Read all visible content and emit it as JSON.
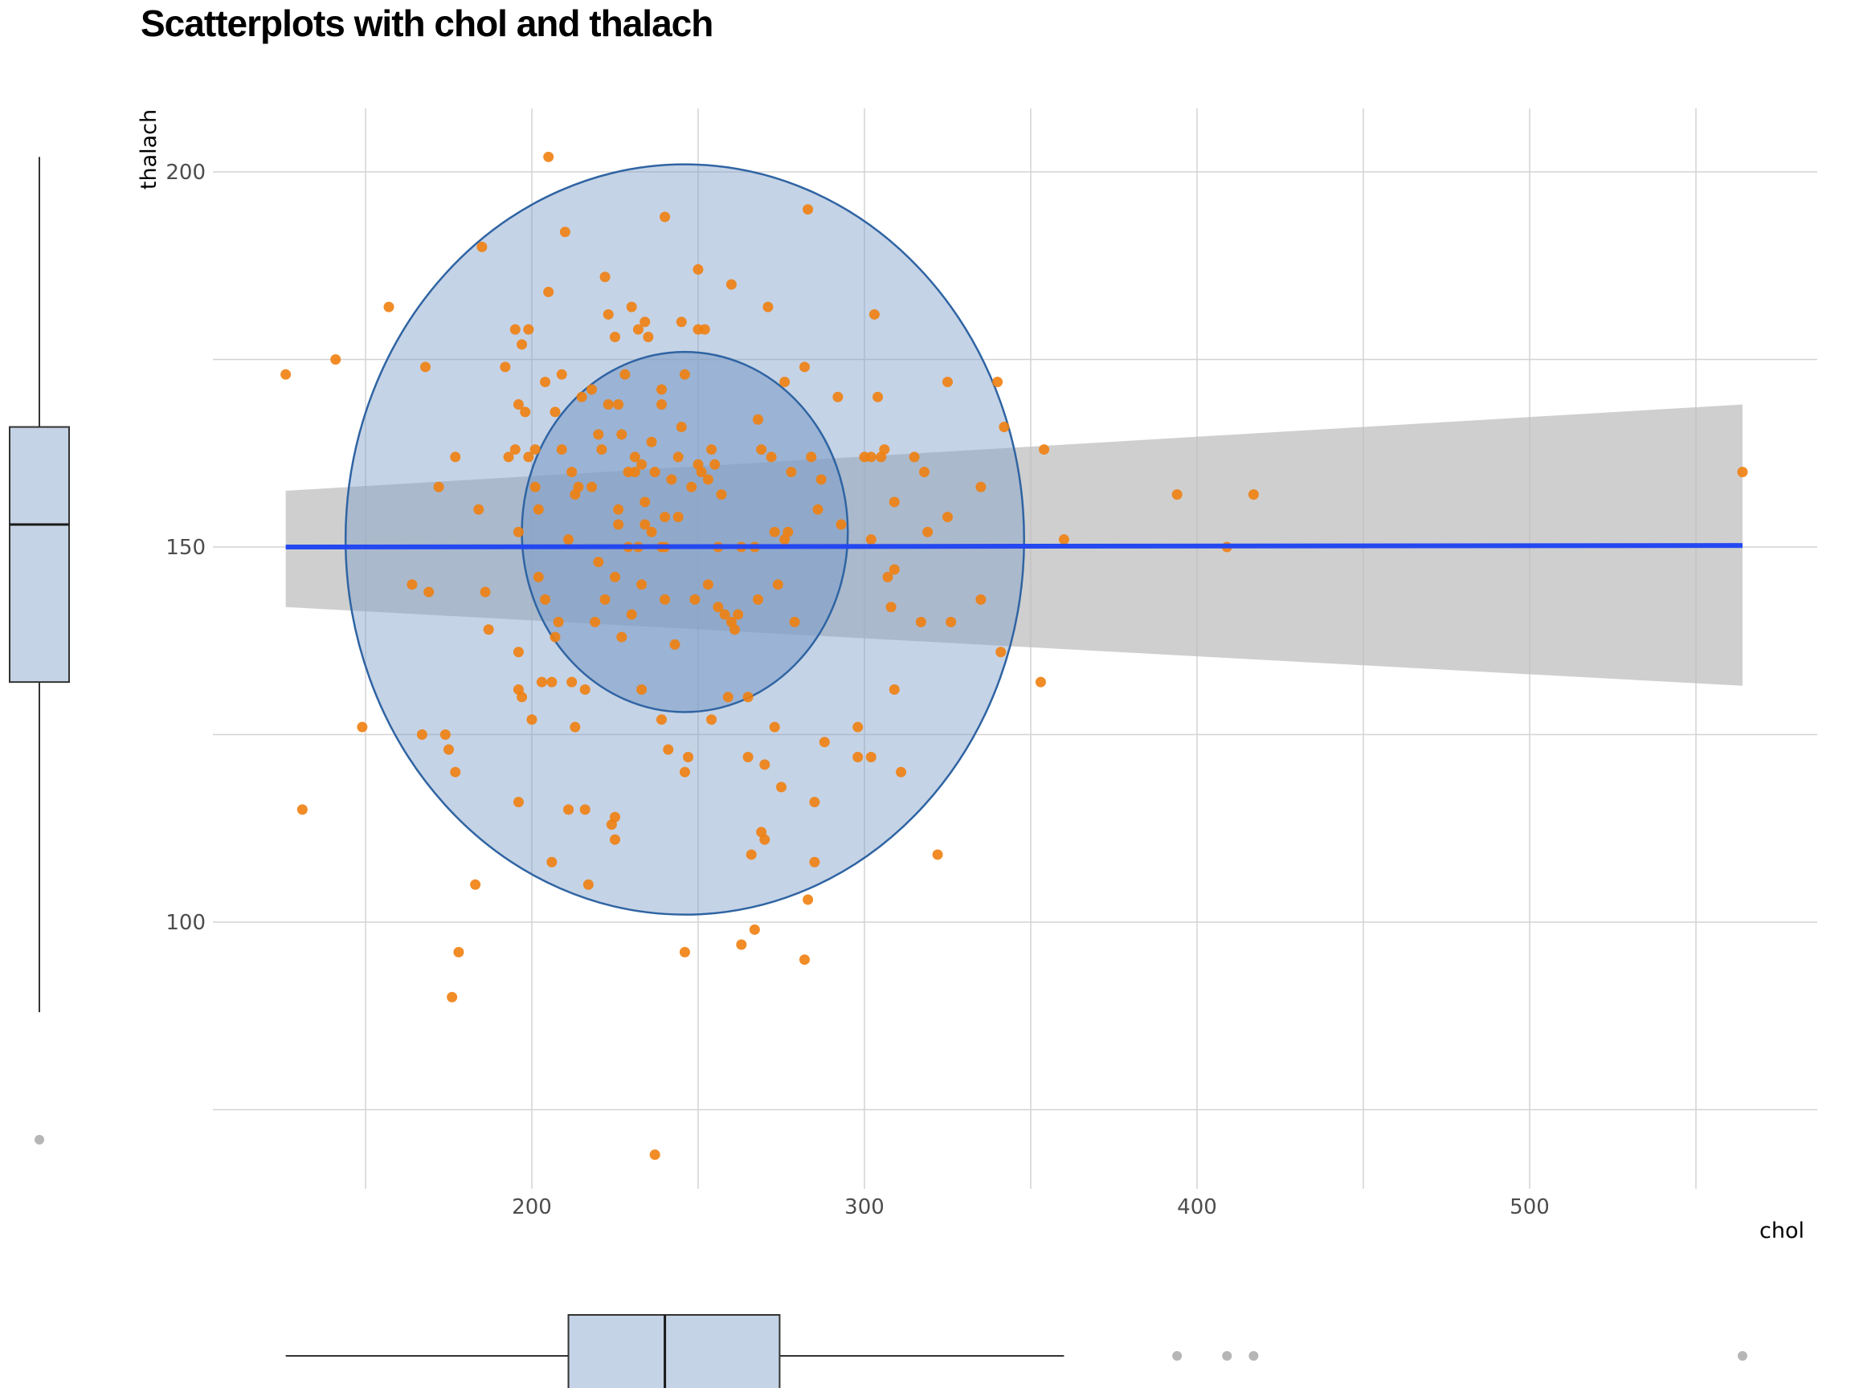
{
  "chart_data": {
    "type": "scatter",
    "title": "Scatterplots with chol and thalach",
    "xlabel": "chol",
    "ylabel": "thalach",
    "xlim": [
      116,
      598
    ],
    "ylim": [
      65,
      208
    ],
    "x_ticks": [
      200,
      300,
      400,
      500
    ],
    "y_ticks": [
      100,
      150,
      200
    ],
    "x_minor_gridlines": [
      150,
      250,
      350,
      450,
      550
    ],
    "y_minor_gridlines": [
      75,
      125,
      175
    ],
    "grid": true,
    "colors": {
      "points": "#f07f0f",
      "ellipse_outline": "#2f64a3",
      "ellipse_fill": "#7f9ec8",
      "regression_line": "#2448f0",
      "confidence_band": "#bdbdbd",
      "boxplot_fill": "#c4d3e5",
      "outlier": "#9e9e9e"
    },
    "regression": {
      "x_start": 126,
      "x_end": 564,
      "y_start": 150.0,
      "y_end": 150.2,
      "band_low_start": 142.0,
      "band_high_start": 157.5,
      "band_low_end": 131.5,
      "band_high_end": 169.0
    },
    "ellipses": [
      {
        "level": "outer",
        "cx": 246,
        "cy": 151,
        "rx": 102,
        "ry": 50
      },
      {
        "level": "inner",
        "cx": 246,
        "cy": 152,
        "rx": 49,
        "ry": 24
      }
    ],
    "points": [
      [
        126,
        173
      ],
      [
        131,
        115
      ],
      [
        141,
        175
      ],
      [
        149,
        126
      ],
      [
        157,
        182
      ],
      [
        164,
        145
      ],
      [
        167,
        125
      ],
      [
        168,
        174
      ],
      [
        169,
        144
      ],
      [
        172,
        158
      ],
      [
        174,
        125
      ],
      [
        175,
        123
      ],
      [
        176,
        90
      ],
      [
        177,
        162
      ],
      [
        177,
        120
      ],
      [
        178,
        96
      ],
      [
        183,
        105
      ],
      [
        184,
        155
      ],
      [
        185,
        190
      ],
      [
        186,
        144
      ],
      [
        187,
        139
      ],
      [
        192,
        174
      ],
      [
        193,
        162
      ],
      [
        195,
        179
      ],
      [
        195,
        163
      ],
      [
        196,
        169
      ],
      [
        196,
        152
      ],
      [
        196,
        136
      ],
      [
        196,
        131
      ],
      [
        196,
        116
      ],
      [
        197,
        177
      ],
      [
        197,
        130
      ],
      [
        198,
        168
      ],
      [
        199,
        179
      ],
      [
        199,
        162
      ],
      [
        200,
        127
      ],
      [
        201,
        163
      ],
      [
        201,
        158
      ],
      [
        202,
        155
      ],
      [
        202,
        146
      ],
      [
        203,
        132
      ],
      [
        204,
        172
      ],
      [
        204,
        143
      ],
      [
        205,
        202
      ],
      [
        205,
        184
      ],
      [
        206,
        132
      ],
      [
        206,
        108
      ],
      [
        207,
        168
      ],
      [
        207,
        138
      ],
      [
        208,
        140
      ],
      [
        209,
        163
      ],
      [
        209,
        173
      ],
      [
        210,
        192
      ],
      [
        211,
        115
      ],
      [
        211,
        151
      ],
      [
        212,
        160
      ],
      [
        212,
        132
      ],
      [
        213,
        126
      ],
      [
        213,
        157
      ],
      [
        214,
        158
      ],
      [
        215,
        170
      ],
      [
        216,
        115
      ],
      [
        216,
        131
      ],
      [
        217,
        105
      ],
      [
        218,
        171
      ],
      [
        218,
        158
      ],
      [
        219,
        140
      ],
      [
        220,
        148
      ],
      [
        220,
        165
      ],
      [
        221,
        163
      ],
      [
        222,
        186
      ],
      [
        222,
        143
      ],
      [
        223,
        169
      ],
      [
        223,
        181
      ],
      [
        224,
        113
      ],
      [
        225,
        114
      ],
      [
        225,
        111
      ],
      [
        225,
        146
      ],
      [
        225,
        178
      ],
      [
        226,
        155
      ],
      [
        226,
        169
      ],
      [
        226,
        153
      ],
      [
        227,
        138
      ],
      [
        227,
        165
      ],
      [
        228,
        173
      ],
      [
        229,
        150
      ],
      [
        229,
        160
      ],
      [
        230,
        141
      ],
      [
        230,
        182
      ],
      [
        231,
        160
      ],
      [
        231,
        162
      ],
      [
        232,
        150
      ],
      [
        232,
        179
      ],
      [
        233,
        161
      ],
      [
        233,
        145
      ],
      [
        233,
        131
      ],
      [
        234,
        180
      ],
      [
        234,
        153
      ],
      [
        234,
        156
      ],
      [
        235,
        178
      ],
      [
        236,
        152
      ],
      [
        236,
        164
      ],
      [
        237,
        69
      ],
      [
        237,
        160
      ],
      [
        239,
        127
      ],
      [
        239,
        150
      ],
      [
        239,
        171
      ],
      [
        239,
        169
      ],
      [
        240,
        194
      ],
      [
        240,
        143
      ],
      [
        240,
        154
      ],
      [
        240,
        150
      ],
      [
        241,
        123
      ],
      [
        242,
        159
      ],
      [
        243,
        137
      ],
      [
        244,
        162
      ],
      [
        244,
        154
      ],
      [
        245,
        180
      ],
      [
        245,
        166
      ],
      [
        246,
        120
      ],
      [
        246,
        96
      ],
      [
        246,
        173
      ],
      [
        247,
        122
      ],
      [
        248,
        158
      ],
      [
        249,
        143
      ],
      [
        250,
        179
      ],
      [
        250,
        187
      ],
      [
        250,
        161
      ],
      [
        251,
        160
      ],
      [
        252,
        179
      ],
      [
        253,
        145
      ],
      [
        253,
        159
      ],
      [
        254,
        163
      ],
      [
        254,
        127
      ],
      [
        255,
        161
      ],
      [
        256,
        142
      ],
      [
        256,
        150
      ],
      [
        257,
        157
      ],
      [
        258,
        141
      ],
      [
        259,
        130
      ],
      [
        260,
        185
      ],
      [
        260,
        140
      ],
      [
        261,
        139
      ],
      [
        262,
        141
      ],
      [
        263,
        150
      ],
      [
        263,
        97
      ],
      [
        265,
        122
      ],
      [
        265,
        130
      ],
      [
        266,
        109
      ],
      [
        267,
        99
      ],
      [
        267,
        150
      ],
      [
        268,
        167
      ],
      [
        268,
        143
      ],
      [
        269,
        163
      ],
      [
        269,
        112
      ],
      [
        270,
        121
      ],
      [
        270,
        111
      ],
      [
        271,
        182
      ],
      [
        272,
        162
      ],
      [
        273,
        152
      ],
      [
        273,
        126
      ],
      [
        274,
        145
      ],
      [
        275,
        118
      ],
      [
        276,
        172
      ],
      [
        276,
        151
      ],
      [
        277,
        152
      ],
      [
        278,
        160
      ],
      [
        279,
        140
      ],
      [
        282,
        174
      ],
      [
        282,
        95
      ],
      [
        283,
        103
      ],
      [
        283,
        195
      ],
      [
        284,
        162
      ],
      [
        285,
        108
      ],
      [
        285,
        116
      ],
      [
        286,
        155
      ],
      [
        287,
        159
      ],
      [
        288,
        124
      ],
      [
        292,
        170
      ],
      [
        293,
        153
      ],
      [
        298,
        126
      ],
      [
        298,
        122
      ],
      [
        300,
        162
      ],
      [
        302,
        151
      ],
      [
        302,
        162
      ],
      [
        302,
        122
      ],
      [
        303,
        181
      ],
      [
        304,
        170
      ],
      [
        305,
        162
      ],
      [
        306,
        163
      ],
      [
        307,
        146
      ],
      [
        308,
        142
      ],
      [
        309,
        147
      ],
      [
        309,
        131
      ],
      [
        309,
        156
      ],
      [
        311,
        120
      ],
      [
        315,
        162
      ],
      [
        317,
        140
      ],
      [
        318,
        160
      ],
      [
        319,
        152
      ],
      [
        322,
        109
      ],
      [
        325,
        172
      ],
      [
        325,
        154
      ],
      [
        326,
        140
      ],
      [
        335,
        158
      ],
      [
        335,
        143
      ],
      [
        340,
        172
      ],
      [
        341,
        136
      ],
      [
        342,
        166
      ],
      [
        353,
        132
      ],
      [
        354,
        163
      ],
      [
        360,
        151
      ],
      [
        394,
        157
      ],
      [
        409,
        150
      ],
      [
        417,
        157
      ],
      [
        564,
        160
      ]
    ],
    "x_boxplot": {
      "min": 126,
      "q1": 211,
      "median": 240,
      "q3": 274.5,
      "max": 360,
      "outliers": [
        394,
        409,
        417,
        564
      ]
    },
    "y_boxplot": {
      "min": 88,
      "q1": 132,
      "median": 153,
      "q3": 166,
      "max": 202,
      "outliers": [
        71
      ]
    }
  }
}
